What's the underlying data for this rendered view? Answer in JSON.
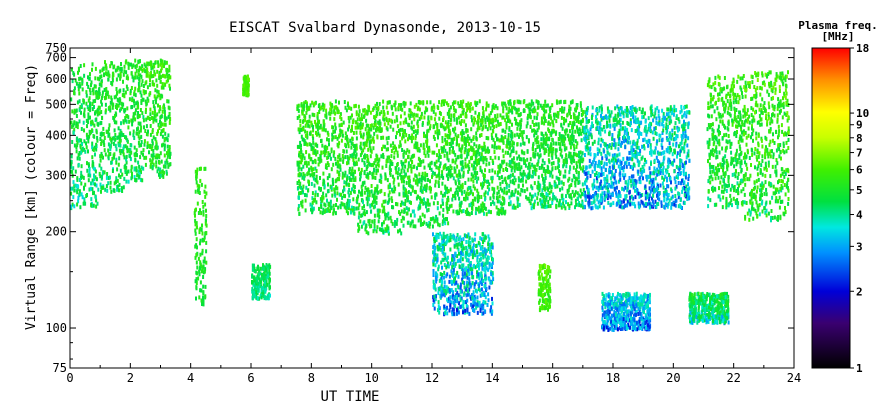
{
  "chart_data": {
    "type": "scatter",
    "title": "EISCAT Svalbard Dynasonde, 2013-10-15",
    "xlabel": "UT TIME",
    "ylabel": "Virtual Range [km] (colour = Freq)",
    "x_ticks": [
      0,
      2,
      4,
      6,
      8,
      10,
      12,
      14,
      16,
      18,
      20,
      22,
      24
    ],
    "y_ticks": [
      75,
      100,
      200,
      300,
      400,
      500,
      600,
      700,
      750
    ],
    "xlim": [
      0,
      24
    ],
    "ylim": [
      75,
      750
    ],
    "y_scale": "log",
    "colorbar": {
      "title_line1": "Plasma freq.",
      "title_line2": "[MHz]",
      "ticks": [
        1,
        2,
        3,
        4,
        5,
        6,
        7,
        8,
        9,
        10,
        18
      ],
      "range": [
        1,
        18
      ],
      "scale": "log",
      "colormap": "rainbow"
    },
    "echo_clusters": [
      {
        "t_start": 0.0,
        "t_end": 0.9,
        "range_min": 240,
        "range_max": 680,
        "freq_low": 2.8,
        "freq_high": 4.8
      },
      {
        "t_start": 0.9,
        "t_end": 1.8,
        "range_min": 270,
        "range_max": 690,
        "freq_low": 3.0,
        "freq_high": 5.0
      },
      {
        "t_start": 1.8,
        "t_end": 2.4,
        "range_min": 290,
        "range_max": 700,
        "freq_low": 3.0,
        "freq_high": 5.0
      },
      {
        "t_start": 2.4,
        "t_end": 3.3,
        "range_min": 300,
        "range_max": 700,
        "freq_low": 3.2,
        "freq_high": 5.5
      },
      {
        "t_start": 4.1,
        "t_end": 4.5,
        "range_min": 120,
        "range_max": 320,
        "freq_low": 3.5,
        "freq_high": 5.0
      },
      {
        "t_start": 5.7,
        "t_end": 5.9,
        "range_min": 540,
        "range_max": 620,
        "freq_low": 4.5,
        "freq_high": 5.5
      },
      {
        "t_start": 6.0,
        "t_end": 6.6,
        "range_min": 125,
        "range_max": 160,
        "freq_low": 3.0,
        "freq_high": 4.0
      },
      {
        "t_start": 7.5,
        "t_end": 9.5,
        "range_min": 230,
        "range_max": 520,
        "freq_low": 3.0,
        "freq_high": 5.5
      },
      {
        "t_start": 9.5,
        "t_end": 11.0,
        "range_min": 200,
        "range_max": 520,
        "freq_low": 3.0,
        "freq_high": 5.5
      },
      {
        "t_start": 11.0,
        "t_end": 12.5,
        "range_min": 210,
        "range_max": 520,
        "freq_low": 3.0,
        "freq_high": 5.5
      },
      {
        "t_start": 12.5,
        "t_end": 14.5,
        "range_min": 230,
        "range_max": 520,
        "freq_low": 3.0,
        "freq_high": 5.5
      },
      {
        "t_start": 14.5,
        "t_end": 17.0,
        "range_min": 240,
        "range_max": 520,
        "freq_low": 3.0,
        "freq_high": 5.0
      },
      {
        "t_start": 17.0,
        "t_end": 20.5,
        "range_min": 240,
        "range_max": 500,
        "freq_low": 2.0,
        "freq_high": 4.0
      },
      {
        "t_start": 21.1,
        "t_end": 22.3,
        "range_min": 240,
        "range_max": 620,
        "freq_low": 3.0,
        "freq_high": 5.5
      },
      {
        "t_start": 22.3,
        "t_end": 23.8,
        "range_min": 220,
        "range_max": 640,
        "freq_low": 3.0,
        "freq_high": 6.0
      },
      {
        "t_start": 12.0,
        "t_end": 14.0,
        "range_min": 112,
        "range_max": 200,
        "freq_low": 2.0,
        "freq_high": 4.0
      },
      {
        "t_start": 15.5,
        "t_end": 15.9,
        "range_min": 115,
        "range_max": 160,
        "freq_low": 4.0,
        "freq_high": 6.0
      },
      {
        "t_start": 17.6,
        "t_end": 19.2,
        "range_min": 100,
        "range_max": 130,
        "freq_low": 2.0,
        "freq_high": 3.5
      },
      {
        "t_start": 20.5,
        "t_end": 21.8,
        "range_min": 105,
        "range_max": 130,
        "freq_low": 2.5,
        "freq_high": 4.5
      }
    ]
  }
}
